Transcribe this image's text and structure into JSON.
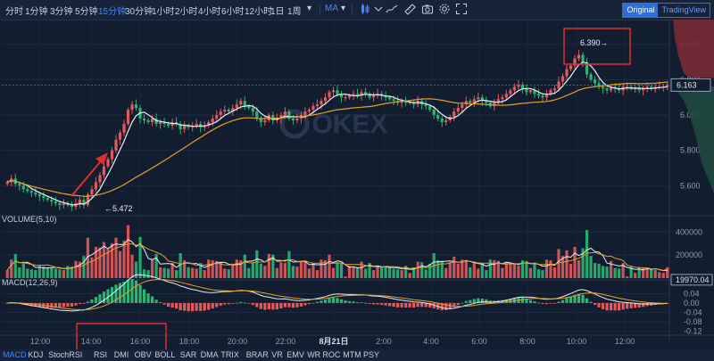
{
  "toolbar": {
    "intervals": [
      "分时",
      "1分钟",
      "3分钟",
      "5分钟",
      "15分钟",
      "30分钟",
      "1小时",
      "2小时",
      "4小时",
      "6小时",
      "12小时",
      "1日",
      "1周"
    ],
    "active_interval": "15分钟",
    "more": "▾",
    "indicator": "MA",
    "mode_original": "Original",
    "mode_tradingview": "TradingView"
  },
  "indicators": {
    "items": [
      "MACD",
      "KDJ",
      "StochRSI",
      "RSI",
      "DMI",
      "OBV",
      "BOLL",
      "SAR",
      "DMA",
      "TRIX",
      "BRAR",
      "VR",
      "EMV",
      "WR",
      "ROC",
      "MTM",
      "PSY"
    ],
    "active": "MACD"
  },
  "watermark": "OKEX",
  "colors": {
    "up": "#e25a5c",
    "down": "#2bb673",
    "ma_white": "#e8eef6",
    "ma_yellow": "#e0a030",
    "accent": "#3d8bff",
    "annot": "#e0302a"
  },
  "chart_data": {
    "type": "candlestick",
    "price_axis": {
      "ticks": [
        5.6,
        5.8,
        6.0,
        6.2,
        6.4
      ],
      "labels": [
        "5.600",
        "5.800",
        "6.000",
        "6.200",
        "6.400"
      ],
      "range": [
        5.44,
        6.5
      ]
    },
    "time_axis": [
      "12:00",
      "14:00",
      "16:00",
      "18:00",
      "20:00",
      "22:00",
      "8月21日",
      "2:00",
      "4:00",
      "6:00",
      "8:00",
      "10:00",
      "12:00"
    ],
    "last_price": "6.163",
    "high_annotation": "6.390",
    "low_annotation": "5.472",
    "close": [
      5.62,
      5.64,
      5.61,
      5.6,
      5.58,
      5.57,
      5.56,
      5.55,
      5.54,
      5.53,
      5.52,
      5.51,
      5.5,
      5.49,
      5.5,
      5.49,
      5.48,
      5.5,
      5.52,
      5.49,
      5.55,
      5.58,
      5.62,
      5.66,
      5.71,
      5.75,
      5.8,
      5.86,
      5.9,
      5.95,
      6.03,
      6.06,
      6.04,
      5.98,
      5.97,
      5.96,
      5.98,
      5.95,
      5.96,
      5.95,
      5.94,
      5.96,
      5.95,
      5.92,
      5.94,
      5.93,
      5.94,
      5.95,
      5.93,
      5.94,
      5.96,
      5.98,
      6.0,
      6.02,
      6.03,
      6.02,
      6.04,
      6.06,
      6.08,
      6.05,
      6.04,
      6.02,
      5.98,
      5.96,
      5.97,
      6.0,
      5.97,
      5.98,
      6.0,
      6.02,
      5.98,
      5.97,
      5.98,
      6.0,
      6.02,
      6.03,
      6.05,
      6.06,
      6.08,
      6.1,
      6.13,
      6.14,
      6.12,
      6.1,
      6.1,
      6.11,
      6.12,
      6.11,
      6.13,
      6.12,
      6.1,
      6.11,
      6.12,
      6.11,
      6.1,
      6.09,
      6.08,
      6.07,
      6.08,
      6.07,
      6.07,
      6.06,
      6.08,
      6.06,
      6.05,
      6.03,
      6.0,
      5.98,
      5.96,
      5.97,
      5.99,
      6.02,
      6.04,
      6.06,
      6.08,
      6.07,
      6.09,
      6.1,
      6.08,
      6.07,
      6.05,
      6.07,
      6.09,
      6.1,
      6.12,
      6.14,
      6.16,
      6.17,
      6.15,
      6.13,
      6.14,
      6.12,
      6.11,
      6.1,
      6.12,
      6.14,
      6.15,
      6.19,
      6.22,
      6.26,
      6.28,
      6.32,
      6.34,
      6.3,
      6.23,
      6.2,
      6.18,
      6.16,
      6.15,
      6.14,
      6.16,
      6.15,
      6.14,
      6.16,
      6.16,
      6.15,
      6.15,
      6.14,
      6.15,
      6.16,
      6.15,
      6.16,
      6.16,
      6.16,
      6.17
    ],
    "volume_axis": {
      "ticks": [
        200000,
        400000
      ],
      "labels": [
        "200000",
        "400000"
      ],
      "max": 480000
    },
    "volume_label": "VOLUME(5,10)",
    "volume_last": "19970.04",
    "macd_label": "MACD(12,26,9)",
    "macd_axis": {
      "ticks": [
        0.04,
        0,
        -0.04,
        -0.08,
        -0.12
      ],
      "labels": [
        "0.04",
        "0.00",
        "-0.04",
        "-0.08",
        "-0.12"
      ],
      "range": [
        -0.13,
        0.08
      ]
    }
  }
}
